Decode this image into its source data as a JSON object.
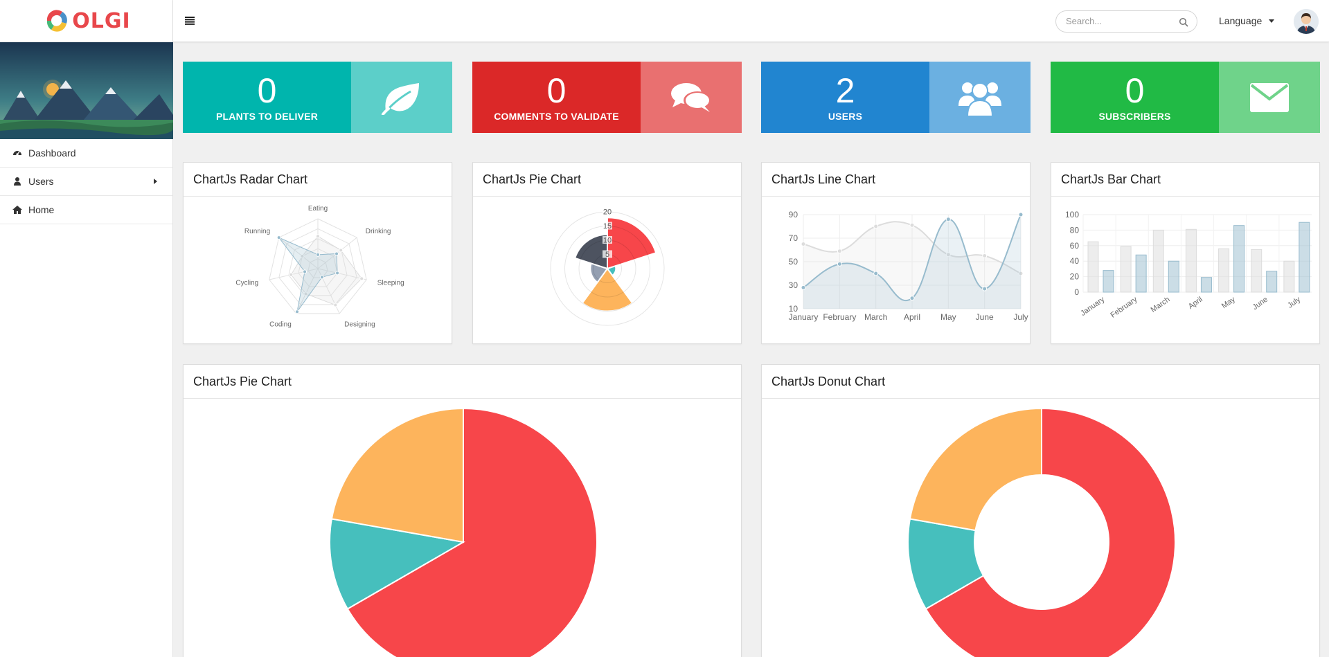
{
  "brand": {
    "name": "OLGI"
  },
  "sidebar": {
    "items": [
      {
        "label": "Dashboard",
        "icon": "dashboard-icon"
      },
      {
        "label": "Users",
        "icon": "user-icon"
      },
      {
        "label": "Home",
        "icon": "home-icon"
      }
    ]
  },
  "header": {
    "search_placeholder": "Search...",
    "language_label": "Language"
  },
  "stats": [
    {
      "value": "0",
      "label": "PLANTS TO DELIVER",
      "color": "#00b5ad",
      "light": "#5ccfc9",
      "icon": "leaf-icon"
    },
    {
      "value": "0",
      "label": "COMMENTS TO VALIDATE",
      "color": "#db2828",
      "light": "#e97070",
      "icon": "comments-icon"
    },
    {
      "value": "2",
      "label": "USERS",
      "color": "#2185d0",
      "light": "#6bb0e1",
      "icon": "users-icon"
    },
    {
      "value": "0",
      "label": "SUBSCRIBERS",
      "color": "#21ba45",
      "light": "#6fd38a",
      "icon": "envelope-icon"
    }
  ],
  "panels": {
    "radar": "ChartJs Radar Chart",
    "polar": "ChartJs Pie Chart",
    "line": "ChartJs Line Chart",
    "bar": "ChartJs Bar Chart",
    "pie": "ChartJs Pie Chart",
    "donut": "ChartJs Donut Chart"
  },
  "chart_data": [
    {
      "type": "radar",
      "title": "ChartJs Radar Chart",
      "categories": [
        "Eating",
        "Drinking",
        "Sleeping",
        "Designing",
        "Coding",
        "Cycling",
        "Running"
      ],
      "max": 100,
      "series": [
        {
          "values": [
            65,
            59,
            90,
            81,
            56,
            55,
            40
          ],
          "color": "#dcdcdc"
        },
        {
          "values": [
            28,
            48,
            40,
            19,
            96,
            27,
            100
          ],
          "color": "#97bbcd"
        }
      ]
    },
    {
      "type": "polar",
      "title": "ChartJs Pie Chart",
      "ticks": [
        5,
        10,
        15,
        20
      ],
      "max": 20,
      "values": [
        18,
        3,
        15,
        6,
        12
      ],
      "colors": [
        "#f7464a",
        "#46bfbd",
        "#fdb45c",
        "#949fb1",
        "#4d5360"
      ]
    },
    {
      "type": "line",
      "title": "ChartJs Line Chart",
      "categories": [
        "January",
        "February",
        "March",
        "April",
        "May",
        "June",
        "July"
      ],
      "yticks": [
        10,
        30,
        50,
        70,
        90
      ],
      "ylim": [
        10,
        90
      ],
      "series": [
        {
          "values": [
            65,
            59,
            80,
            81,
            56,
            55,
            40
          ],
          "color": "#dcdcdc"
        },
        {
          "values": [
            28,
            48,
            40,
            19,
            86,
            27,
            90
          ],
          "color": "#97bbcd"
        }
      ]
    },
    {
      "type": "bar",
      "title": "ChartJs Bar Chart",
      "categories": [
        "January",
        "February",
        "March",
        "April",
        "May",
        "June",
        "July"
      ],
      "yticks": [
        0,
        20,
        40,
        60,
        80,
        100
      ],
      "ylim": [
        0,
        100
      ],
      "series": [
        {
          "values": [
            65,
            59,
            80,
            81,
            56,
            55,
            40
          ],
          "color": "#dcdcdc"
        },
        {
          "values": [
            28,
            48,
            40,
            19,
            86,
            27,
            90
          ],
          "color": "#97bbcd"
        }
      ]
    },
    {
      "type": "pie",
      "title": "ChartJs Pie Chart",
      "values": [
        300,
        50,
        100
      ],
      "colors": [
        "#f7464a",
        "#46bfbd",
        "#fdb45c"
      ]
    },
    {
      "type": "donut",
      "title": "ChartJs Donut Chart",
      "values": [
        300,
        50,
        100
      ],
      "colors": [
        "#f7464a",
        "#46bfbd",
        "#fdb45c"
      ]
    }
  ]
}
